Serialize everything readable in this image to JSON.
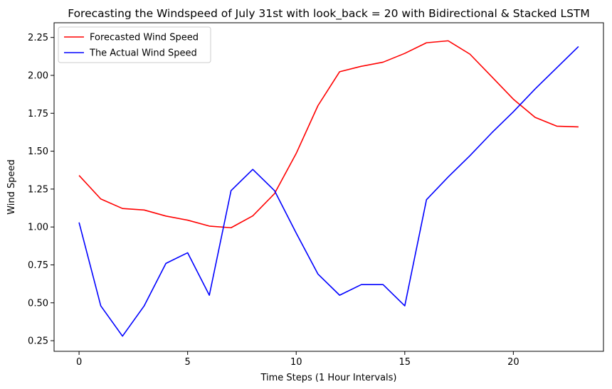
{
  "chart_data": {
    "type": "line",
    "title": "Forecasting the Windspeed of July 31st with look_back = 20 with Bidirectional & Stacked LSTM",
    "xlabel": "Time Steps (1 Hour Intervals)",
    "ylabel": "Wind Speed",
    "xlim": [
      -1.15,
      24.15
    ],
    "ylim": [
      0.18,
      2.347
    ],
    "xticks": [
      0,
      5,
      10,
      15,
      20
    ],
    "yticks": [
      0.25,
      0.5,
      0.75,
      1.0,
      1.25,
      1.5,
      1.75,
      2.0,
      2.25
    ],
    "ytick_labels": [
      "0.25",
      "0.50",
      "0.75",
      "1.00",
      "1.25",
      "1.50",
      "1.75",
      "2.00",
      "2.25"
    ],
    "grid": false,
    "legend_position": "top-left",
    "x": [
      0,
      1,
      2,
      3,
      4,
      5,
      6,
      7,
      8,
      9,
      10,
      11,
      12,
      13,
      14,
      15,
      16,
      17,
      18,
      19,
      20,
      21,
      22,
      23
    ],
    "series": [
      {
        "name": "Forecasted Wind Speed",
        "color": "#ff0000",
        "values": [
          1.34,
          1.185,
          1.122,
          1.112,
          1.072,
          1.045,
          1.006,
          0.995,
          1.073,
          1.22,
          1.485,
          1.8,
          2.024,
          2.06,
          2.087,
          2.145,
          2.215,
          2.228,
          2.14,
          1.992,
          1.843,
          1.723,
          1.665,
          1.66
        ]
      },
      {
        "name": "The Actual Wind Speed",
        "color": "#0000ff",
        "values": [
          1.03,
          0.48,
          0.28,
          0.48,
          0.76,
          0.83,
          0.55,
          1.24,
          1.38,
          1.24,
          0.96,
          0.69,
          0.55,
          0.62,
          0.62,
          0.48,
          1.18,
          1.33,
          1.47,
          1.62,
          1.76,
          1.91,
          2.05,
          2.19
        ]
      }
    ]
  }
}
